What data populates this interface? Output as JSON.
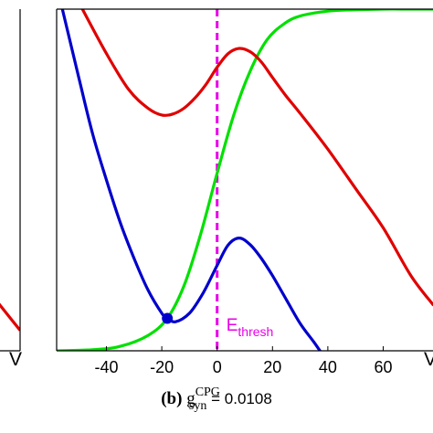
{
  "chart_data": [
    {
      "panel": "left",
      "type": "line",
      "xlabel": "V",
      "series": [
        {
          "color": "#e00000",
          "x": [
            -6,
            0
          ],
          "y": [
            0.14,
            0.06
          ]
        }
      ]
    },
    {
      "panel": "b",
      "type": "line",
      "caption": {
        "label": "(b)",
        "symbol": "g",
        "superscript": "CPG",
        "subscript": "syn",
        "value": "= 0.0108"
      },
      "xlabel": "V",
      "xlim": [
        -58,
        78
      ],
      "ylim": [
        0,
        1
      ],
      "xticks": [
        -40,
        -20,
        0,
        20,
        40,
        60
      ],
      "xtick_labels": [
        "-40",
        "-20",
        "0",
        "20",
        "40",
        "60"
      ],
      "edge_tick_label": "V",
      "threshold": {
        "x": 0,
        "label": "E",
        "label_sub": "thresh",
        "color": "#e800e8",
        "style": "dashed"
      },
      "marker": {
        "x": -18,
        "y": 0.095,
        "color": "#0000cc"
      },
      "series": [
        {
          "color": "#00e000",
          "x": [
            -58,
            -45,
            -35,
            -25,
            -18,
            -12,
            -6,
            0,
            6,
            12,
            18,
            24,
            30,
            40,
            50,
            60,
            70,
            78
          ],
          "y": [
            0.0,
            0.003,
            0.013,
            0.045,
            0.095,
            0.19,
            0.34,
            0.52,
            0.69,
            0.82,
            0.91,
            0.956,
            0.98,
            0.994,
            0.998,
            1.0,
            1.0,
            1.0
          ]
        },
        {
          "color": "#e00000",
          "x": [
            -58,
            -50,
            -40,
            -32,
            -25,
            -20,
            -16,
            -12,
            -8,
            -4,
            0,
            4,
            8,
            12,
            16,
            20,
            25,
            30,
            40,
            50,
            60,
            70,
            78
          ],
          "y": [
            1.14,
            1.02,
            0.87,
            0.765,
            0.71,
            0.69,
            0.693,
            0.71,
            0.74,
            0.78,
            0.83,
            0.87,
            0.885,
            0.875,
            0.845,
            0.8,
            0.745,
            0.695,
            0.59,
            0.475,
            0.36,
            0.22,
            0.135
          ]
        },
        {
          "color": "#0000cc",
          "x": [
            -58,
            -50,
            -45,
            -40,
            -35,
            -30,
            -25,
            -20,
            -18,
            -15,
            -10,
            -5,
            0,
            4,
            8,
            12,
            16,
            20,
            25,
            30,
            35,
            38
          ],
          "y": [
            1.07,
            0.8,
            0.635,
            0.5,
            0.375,
            0.27,
            0.178,
            0.11,
            0.095,
            0.085,
            0.11,
            0.17,
            0.25,
            0.31,
            0.33,
            0.31,
            0.27,
            0.22,
            0.15,
            0.08,
            0.025,
            -0.01
          ]
        }
      ]
    }
  ]
}
